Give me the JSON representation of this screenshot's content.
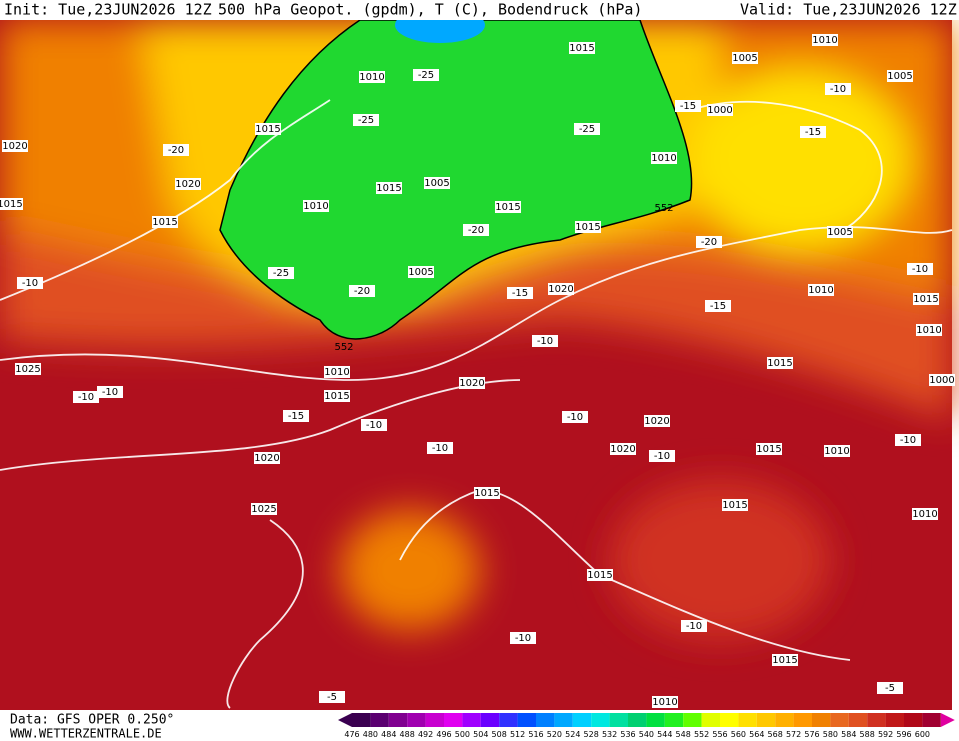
{
  "header": {
    "init": "Init: Tue,23JUN2026 12Z",
    "title": "500 hPa Geopot. (gpdm), T (C), Bodendruck (hPa)",
    "valid": "Valid: Tue,23JUN2026 12Z"
  },
  "footer": {
    "data": "Data: GFS OPER 0.250°",
    "site": "WWW.WETTERZENTRALE.DE"
  },
  "pressure_labels": [
    1015,
    1010,
    1005,
    1005,
    1010,
    1000,
    1015,
    1020,
    1020,
    1015,
    1005,
    1010,
    1010,
    1015,
    1015,
    1015,
    1015,
    1005,
    1005,
    1020,
    1010,
    1015,
    1010,
    1015,
    1025,
    1010,
    1020,
    1015,
    1000,
    1020,
    1020,
    1015,
    1010,
    1020,
    1015,
    1015,
    1025,
    1010,
    1015,
    1015,
    1010
  ],
  "temperature_labels": [
    -25,
    -25,
    -15,
    -10,
    -15,
    -25,
    -20,
    -20,
    -20,
    -10,
    -25,
    -20,
    -15,
    -10,
    -15,
    -10,
    -10,
    -10,
    -15,
    -10,
    -10,
    -10,
    -10,
    -10,
    -10,
    -10,
    -5,
    -5
  ],
  "height_labels": [
    552,
    552
  ],
  "colorbar": {
    "ticks": [
      476,
      480,
      484,
      488,
      492,
      496,
      500,
      504,
      508,
      512,
      516,
      520,
      524,
      528,
      532,
      536,
      540,
      544,
      548,
      552,
      556,
      560,
      564,
      568,
      572,
      576,
      580,
      584,
      588,
      592,
      596,
      600
    ],
    "colors": [
      "#3a0050",
      "#5a0070",
      "#800090",
      "#a000b0",
      "#c800d0",
      "#e000f0",
      "#a000ff",
      "#6a00ff",
      "#3030ff",
      "#0050ff",
      "#0080ff",
      "#00a8ff",
      "#00d0ff",
      "#00e8e0",
      "#00e0a0",
      "#00d070",
      "#00e040",
      "#20f020",
      "#60ff00",
      "#e0ff00",
      "#ffff00",
      "#ffe000",
      "#ffc800",
      "#ffb000",
      "#ff9800",
      "#f08000",
      "#e86820",
      "#e05020",
      "#d03020",
      "#c01818",
      "#b00818",
      "#a00030"
    ]
  }
}
